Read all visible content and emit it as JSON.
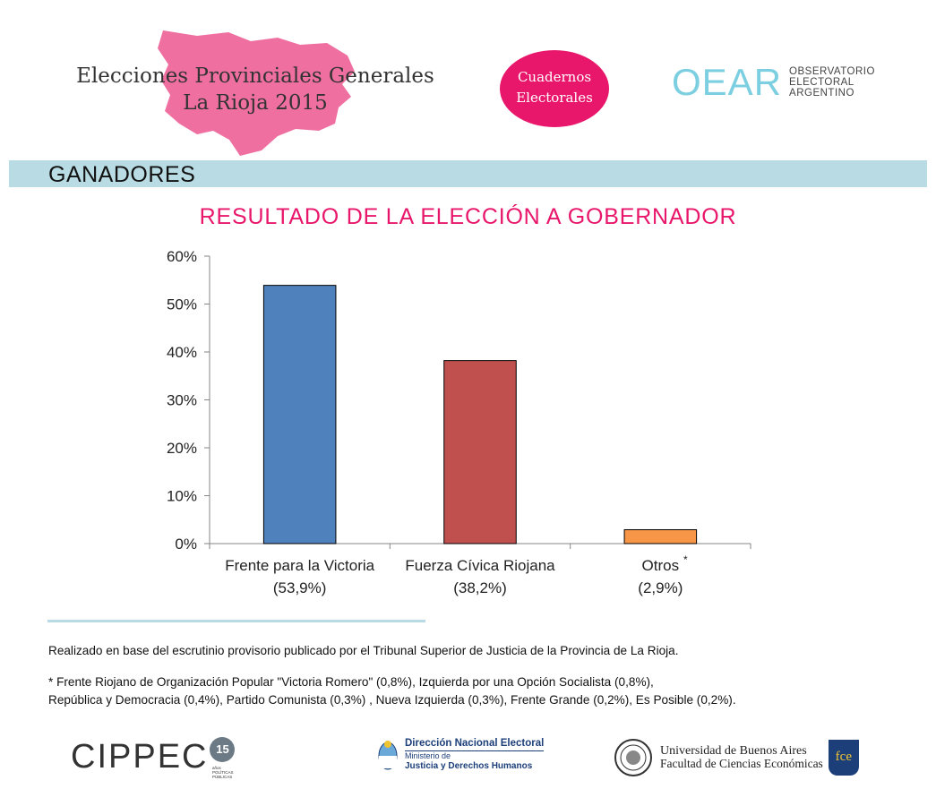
{
  "header": {
    "title_line1": "Elecciones Provinciales Generales",
    "title_line2": "La Rioja 2015",
    "badge_line1": "Cuadernos",
    "badge_line2": "Electorales",
    "oear_mark": "OEAR",
    "oear_line1": "OBSERVATORIO",
    "oear_line2": "ELECTORAL",
    "oear_line3": "ARGENTINO"
  },
  "section": {
    "title": "GANADORES"
  },
  "chart_data": {
    "type": "bar",
    "title": "RESULTADO DE LA ELECCIÓN A GOBERNADOR",
    "categories": [
      "Frente para la Victoria",
      "Fuerza Cívica Riojana",
      "Otros"
    ],
    "category_notes": [
      "(53,9%)",
      "(38,2%)",
      "(2,9%)"
    ],
    "category_marks": [
      "",
      "",
      "*"
    ],
    "values": [
      53.9,
      38.2,
      2.9
    ],
    "colors": [
      "#4f81bd",
      "#c0504d",
      "#f79646"
    ],
    "ylim": [
      0,
      60
    ],
    "yticks": [
      0,
      10,
      20,
      30,
      40,
      50,
      60
    ],
    "ytick_labels": [
      "0%",
      "10%",
      "20%",
      "30%",
      "40%",
      "50%",
      "60%"
    ],
    "xlabel": "",
    "ylabel": "",
    "grid": false
  },
  "notes": {
    "source": "Realizado en base del escrutinio provisorio publicado por el Tribunal Superior de Justicia de la Provincia de La Rioja.",
    "footnote_line1": "* Frente Riojano de Organización Popular \"Victoria Romero\" (0,8%), Izquierda por una Opción Socialista (0,8%),",
    "footnote_line2": "República y Democracia (0,4%), Partido Comunista (0,3%)  , Nueva Izquierda (0,3%), Frente Grande (0,2%), Es Posible (0,2%)."
  },
  "footer": {
    "cippec_word": "CIPPEC",
    "cippec_badge": "15",
    "cippec_sub1": "años",
    "cippec_sub2": "POLÍTICAS",
    "cippec_sub3": "PÚBLICAS",
    "dne_title": "Dirección Nacional Electoral",
    "dne_sub1": "Ministerio de",
    "dne_sub2": "Justicia y Derechos Humanos",
    "uba_line1": "Universidad de Buenos Aires",
    "uba_line2": "Facultad de Ciencias Económicas",
    "fce_mark": "fce"
  }
}
